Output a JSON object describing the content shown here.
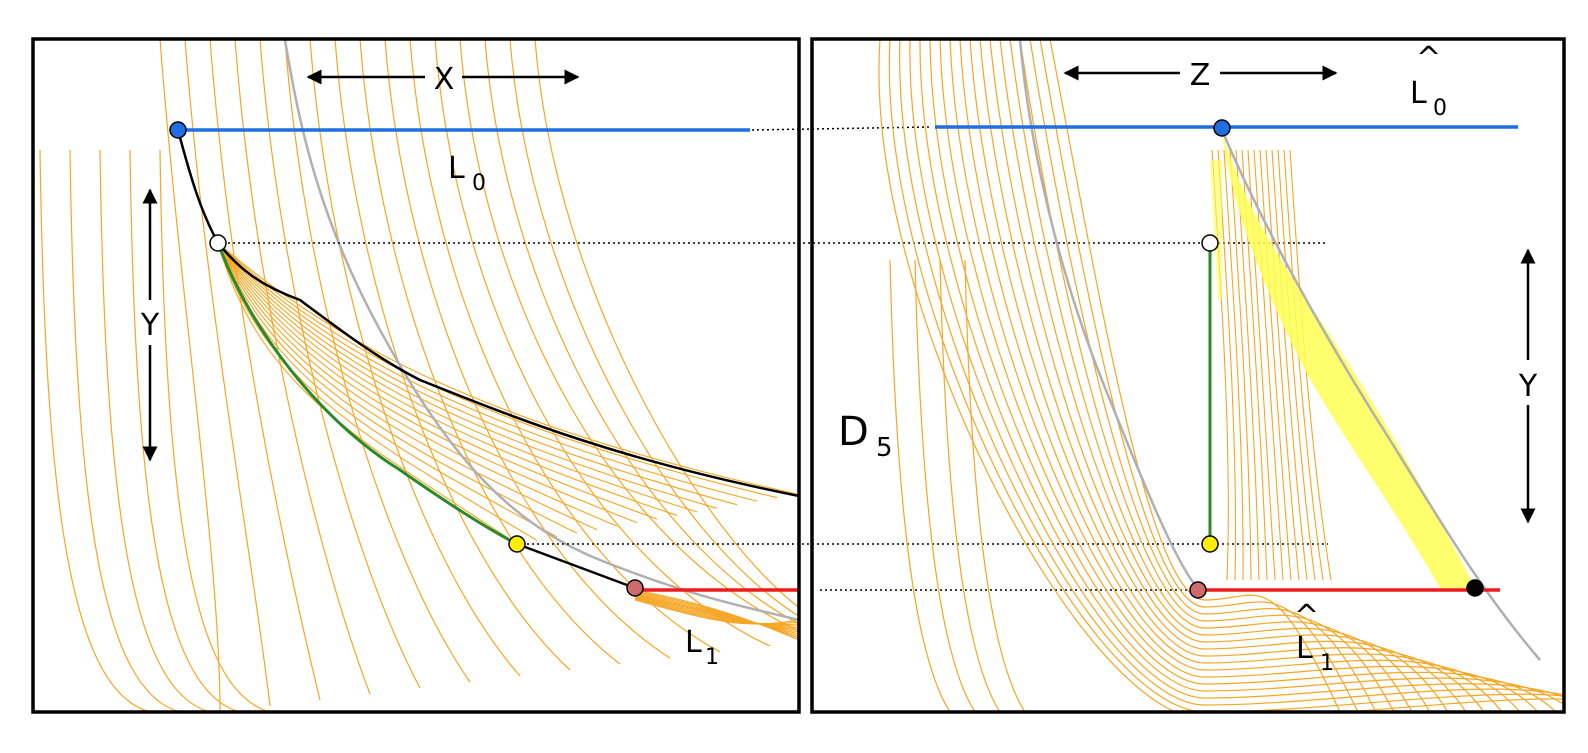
{
  "left_panel": {
    "axis_x": "X",
    "axis_y": "Y",
    "line_top": {
      "name": "L",
      "subscript": "0"
    },
    "line_bottom": {
      "name": "L",
      "subscript": "1"
    }
  },
  "right_panel": {
    "axis_z": "Z",
    "axis_y": "Y",
    "line_top": {
      "name": "L",
      "subscript": "0",
      "hat": "^"
    },
    "line_bottom": {
      "name": "L",
      "subscript": "1",
      "hat": "^"
    },
    "domain_label": {
      "name": "D",
      "subscript": "5"
    }
  },
  "colors": {
    "contour": "#f5a623",
    "fill_left": "#f7b23a",
    "fill_right": "#ffff55",
    "blue": "#1f6fe0",
    "red": "#ee1c1c",
    "green": "#2a8a2a",
    "point_blue": "#1f6fe0",
    "point_white": "#ffffff",
    "point_yellow": "#ffee00",
    "point_red": "#d06b6b",
    "point_black": "#000000"
  }
}
